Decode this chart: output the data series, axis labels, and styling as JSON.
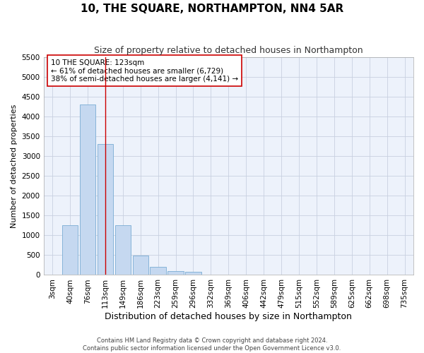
{
  "title": "10, THE SQUARE, NORTHAMPTON, NN4 5AR",
  "subtitle": "Size of property relative to detached houses in Northampton",
  "xlabel": "Distribution of detached houses by size in Northampton",
  "ylabel": "Number of detached properties",
  "footer_line1": "Contains HM Land Registry data © Crown copyright and database right 2024.",
  "footer_line2": "Contains public sector information licensed under the Open Government Licence v3.0.",
  "categories": [
    "3sqm",
    "40sqm",
    "76sqm",
    "113sqm",
    "149sqm",
    "186sqm",
    "223sqm",
    "259sqm",
    "296sqm",
    "332sqm",
    "369sqm",
    "406sqm",
    "442sqm",
    "479sqm",
    "515sqm",
    "552sqm",
    "589sqm",
    "625sqm",
    "662sqm",
    "698sqm",
    "735sqm"
  ],
  "values": [
    0,
    1250,
    4300,
    3300,
    1250,
    480,
    200,
    100,
    75,
    0,
    0,
    0,
    0,
    0,
    0,
    0,
    0,
    0,
    0,
    0,
    0
  ],
  "bar_color": "#c5d8f0",
  "bar_edge_color": "#7aadd4",
  "vline_color": "#cc0000",
  "vline_x": 3.0,
  "annotation_box_text": "10 THE SQUARE: 123sqm\n← 61% of detached houses are smaller (6,729)\n38% of semi-detached houses are larger (4,141) →",
  "ylim": [
    0,
    5500
  ],
  "yticks": [
    0,
    500,
    1000,
    1500,
    2000,
    2500,
    3000,
    3500,
    4000,
    4500,
    5000,
    5500
  ],
  "background_color": "#edf2fb",
  "grid_color": "#c8d0e0",
  "title_fontsize": 11,
  "subtitle_fontsize": 9,
  "xlabel_fontsize": 9,
  "ylabel_fontsize": 8,
  "tick_fontsize": 7.5,
  "annotation_fontsize": 7.5,
  "footer_fontsize": 6
}
